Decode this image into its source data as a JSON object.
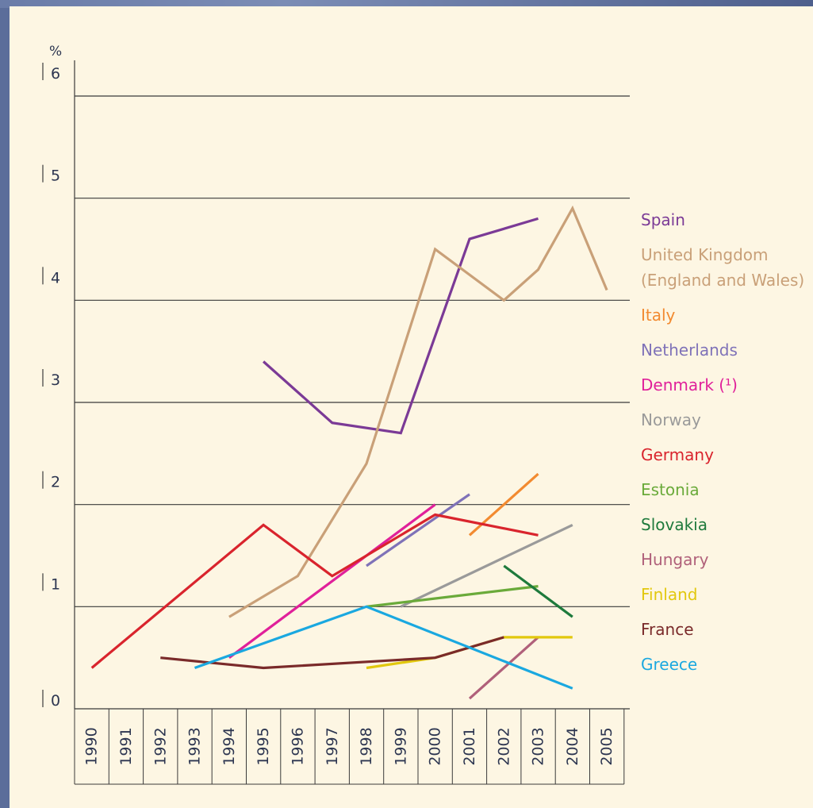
{
  "chart_data": {
    "type": "line",
    "ylabel": "%",
    "ylim": [
      0,
      6
    ],
    "y_ticks": [
      "0",
      "1",
      "2",
      "3",
      "4",
      "5",
      "6"
    ],
    "x_ticks": [
      "1990",
      "1991",
      "1992",
      "1993",
      "1994",
      "1995",
      "1996",
      "1997",
      "1998",
      "1999",
      "2000",
      "2001",
      "2002",
      "2003",
      "2004",
      "2005"
    ],
    "grid": true,
    "legend_position": "right",
    "series": [
      {
        "name": "Spain",
        "color": "#7b3a96",
        "points": [
          [
            1995,
            3.4
          ],
          [
            1997,
            2.8
          ],
          [
            1999,
            2.7
          ],
          [
            2001,
            4.6
          ],
          [
            2003,
            4.8
          ]
        ]
      },
      {
        "name": "United Kingdom",
        "name_line2": "(England and Wales)",
        "color": "#c9a078",
        "points": [
          [
            1994,
            0.9
          ],
          [
            1996,
            1.3
          ],
          [
            1998,
            2.4
          ],
          [
            2000,
            4.5
          ],
          [
            2002,
            4.0
          ],
          [
            2003,
            4.3
          ],
          [
            2004,
            4.9
          ],
          [
            2005,
            4.1
          ]
        ]
      },
      {
        "name": "Italy",
        "color": "#f28a30",
        "points": [
          [
            2001,
            1.7
          ],
          [
            2003,
            2.3
          ]
        ]
      },
      {
        "name": "Netherlands",
        "color": "#7f72b8",
        "points": [
          [
            1998,
            1.4
          ],
          [
            2001,
            2.1
          ]
        ]
      },
      {
        "name": "Denmark (¹)",
        "color": "#e0209a",
        "points": [
          [
            1994,
            0.5
          ],
          [
            2000,
            2.0
          ]
        ]
      },
      {
        "name": "Norway",
        "color": "#9a9a9a",
        "points": [
          [
            1999,
            1.0
          ],
          [
            2004,
            1.8
          ]
        ]
      },
      {
        "name": "Germany",
        "color": "#d9242d",
        "points": [
          [
            1990,
            0.4
          ],
          [
            1995,
            1.8
          ],
          [
            1997,
            1.3
          ],
          [
            2000,
            1.9
          ],
          [
            2003,
            1.7
          ]
        ]
      },
      {
        "name": "Estonia",
        "color": "#6aaa3a",
        "points": [
          [
            1998,
            1.0
          ],
          [
            2003,
            1.2
          ]
        ]
      },
      {
        "name": "Slovakia",
        "color": "#1e7a3c",
        "points": [
          [
            2002,
            1.4
          ],
          [
            2004,
            0.9
          ]
        ]
      },
      {
        "name": "Hungary",
        "color": "#b0607a",
        "points": [
          [
            2001,
            0.1
          ],
          [
            2003,
            0.7
          ]
        ]
      },
      {
        "name": "Finland",
        "color": "#e2c80e",
        "points": [
          [
            1998,
            0.4
          ],
          [
            2000,
            0.5
          ],
          [
            2002,
            0.7
          ],
          [
            2004,
            0.7
          ]
        ]
      },
      {
        "name": "France",
        "color": "#7a2a2a",
        "points": [
          [
            1992,
            0.5
          ],
          [
            1995,
            0.4
          ],
          [
            2000,
            0.5
          ],
          [
            2002,
            0.7
          ]
        ]
      },
      {
        "name": "Greece",
        "color": "#1aa8e0",
        "points": [
          [
            1993,
            0.4
          ],
          [
            1998,
            1.0
          ],
          [
            2004,
            0.2
          ]
        ]
      }
    ]
  }
}
